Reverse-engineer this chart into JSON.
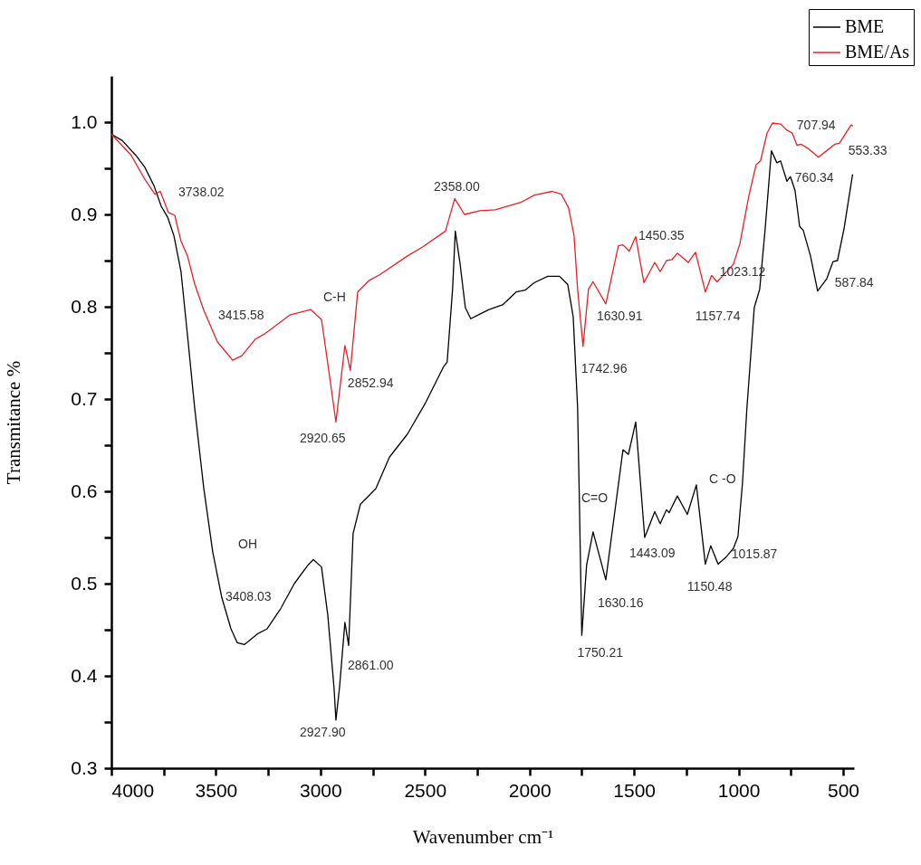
{
  "chart_data": {
    "type": "line",
    "xlabel": "Wavenumber cm⁻¹",
    "ylabel": "Transmitance %",
    "xlim": [
      4000,
      448
    ],
    "ylim": [
      0.3,
      1.05
    ],
    "xticks": [
      4000,
      {
        "value": 3750,
        "label": null
      },
      3500,
      {
        "value": 3250,
        "label": null
      },
      3000,
      {
        "value": 2750,
        "label": null
      },
      2500,
      {
        "value": 2250,
        "label": null
      },
      2000,
      {
        "value": 1750,
        "label": null
      },
      1500,
      {
        "value": 1250,
        "label": null
      },
      1000,
      {
        "value": 750,
        "label": null
      },
      500
    ],
    "yticks": [
      {
        "value": 0.3,
        "label": "0.3"
      },
      {
        "value": 0.35,
        "label": null
      },
      {
        "value": 0.4,
        "label": "0.4"
      },
      {
        "value": 0.45,
        "label": null
      },
      {
        "value": 0.5,
        "label": "0.5"
      },
      {
        "value": 0.55,
        "label": null
      },
      {
        "value": 0.6,
        "label": "0.6"
      },
      {
        "value": 0.65,
        "label": null
      },
      {
        "value": 0.7,
        "label": "0.7"
      },
      {
        "value": 0.75,
        "label": null
      },
      {
        "value": 0.8,
        "label": "0.8"
      },
      {
        "value": 0.85,
        "label": null
      },
      {
        "value": 0.9,
        "label": "0.9"
      },
      {
        "value": 0.95,
        "label": null
      },
      {
        "value": 1.0,
        "label": "1.0"
      }
    ],
    "legend": "top right",
    "series": [
      {
        "name": "BME",
        "color": "#000000",
        "x": [
          4000,
          3948,
          3883,
          3840,
          3796,
          3762,
          3731,
          3701,
          3667,
          3632,
          3602,
          3558,
          3515,
          3472,
          3428,
          3398,
          3363,
          3298,
          3255,
          3190,
          3125,
          3060,
          3034,
          2995,
          2965,
          2935,
          2926,
          2909,
          2883,
          2865,
          2844,
          2809,
          2735,
          2670,
          2584,
          2497,
          2411,
          2394,
          2368,
          2355,
          2333,
          2307,
          2281,
          2237,
          2194,
          2129,
          2064,
          2021,
          1978,
          1913,
          1856,
          1817,
          1791,
          1770,
          1761,
          1750,
          1727,
          1696,
          1635,
          1553,
          1527,
          1492,
          1449,
          1401,
          1375,
          1345,
          1332,
          1293,
          1245,
          1202,
          1159,
          1133,
          1098,
          1059,
          1025,
          1003,
          981,
          960,
          925,
          899,
          873,
          843,
          817,
          799,
          769,
          752,
          730,
          708,
          691,
          656,
          622,
          579,
          548,
          527,
          496,
          455
        ],
        "values": [
          0.987,
          0.98,
          0.964,
          0.951,
          0.931,
          0.909,
          0.897,
          0.877,
          0.838,
          0.76,
          0.691,
          0.603,
          0.534,
          0.485,
          0.451,
          0.436,
          0.434,
          0.446,
          0.451,
          0.473,
          0.5,
          0.52,
          0.526,
          0.518,
          0.466,
          0.387,
          0.352,
          0.387,
          0.458,
          0.433,
          0.554,
          0.586,
          0.603,
          0.637,
          0.662,
          0.696,
          0.735,
          0.74,
          0.819,
          0.882,
          0.848,
          0.799,
          0.787,
          0.792,
          0.797,
          0.802,
          0.816,
          0.818,
          0.826,
          0.833,
          0.833,
          0.824,
          0.789,
          0.691,
          0.583,
          0.444,
          0.52,
          0.556,
          0.504,
          0.645,
          0.64,
          0.675,
          0.55,
          0.578,
          0.565,
          0.58,
          0.577,
          0.595,
          0.575,
          0.607,
          0.521,
          0.541,
          0.521,
          0.529,
          0.538,
          0.551,
          0.61,
          0.691,
          0.799,
          0.819,
          0.884,
          0.969,
          0.956,
          0.958,
          0.936,
          0.941,
          0.926,
          0.887,
          0.883,
          0.855,
          0.817,
          0.83,
          0.849,
          0.85,
          0.884,
          0.943
        ]
      },
      {
        "name": "BME/As",
        "color": "#e8202a",
        "x": [
          4000,
          3905,
          3840,
          3792,
          3766,
          3727,
          3697,
          3667,
          3636,
          3602,
          3558,
          3493,
          3420,
          3376,
          3311,
          3264,
          3147,
          3047,
          2995,
          2974,
          2926,
          2883,
          2857,
          2822,
          2770,
          2714,
          2584,
          2510,
          2402,
          2358,
          2311,
          2237,
          2164,
          2042,
          1977,
          1891,
          1848,
          1813,
          1787,
          1770,
          1744,
          1718,
          1696,
          1635,
          1575,
          1553,
          1523,
          1492,
          1453,
          1401,
          1375,
          1345,
          1319,
          1293,
          1241,
          1206,
          1159,
          1129,
          1103,
          1025,
          994,
          951,
          916,
          895,
          864,
          838,
          799,
          773,
          743,
          721,
          700,
          665,
          618,
          579,
          540,
          518,
          462,
          455
        ],
        "values": [
          0.987,
          0.964,
          0.938,
          0.922,
          0.925,
          0.902,
          0.899,
          0.871,
          0.855,
          0.825,
          0.796,
          0.762,
          0.742,
          0.747,
          0.765,
          0.771,
          0.791,
          0.797,
          0.786,
          0.753,
          0.675,
          0.758,
          0.731,
          0.816,
          0.828,
          0.835,
          0.855,
          0.865,
          0.882,
          0.917,
          0.9,
          0.904,
          0.905,
          0.913,
          0.921,
          0.925,
          0.922,
          0.907,
          0.877,
          0.819,
          0.757,
          0.819,
          0.827,
          0.803,
          0.866,
          0.867,
          0.86,
          0.876,
          0.826,
          0.848,
          0.838,
          0.85,
          0.851,
          0.858,
          0.848,
          0.859,
          0.816,
          0.834,
          0.827,
          0.846,
          0.868,
          0.92,
          0.954,
          0.958,
          0.988,
          0.999,
          0.998,
          0.992,
          0.988,
          0.975,
          0.976,
          0.971,
          0.962,
          0.969,
          0.976,
          0.977,
          0.997,
          0.996
        ]
      }
    ],
    "annotations": [
      {
        "text": "3738.02",
        "x": 3766,
        "y": 0.925
      },
      "3415.58",
      "C-H",
      {
        "text": "2852.94",
        "x": 2857,
        "y": 0.731
      },
      {
        "text": "2920.65",
        "x": 2926,
        "y": 0.675
      },
      {
        "text": "2358.00",
        "x": 2358,
        "y": 0.917
      },
      {
        "text": "707.94",
        "x": 700,
        "y": 0.976
      },
      {
        "text": "553.33",
        "x": 540,
        "y": 0.976
      },
      {
        "text": "760.34",
        "x": 752,
        "y": 0.941
      },
      {
        "text": "587.84",
        "x": 622,
        "y": 0.817
      },
      {
        "text": "1450.35",
        "x": 1492,
        "y": 0.876
      },
      {
        "text": "1023.12",
        "x": 1025,
        "y": 0.846
      },
      {
        "text": "1630.91",
        "x": 1635,
        "y": 0.803
      },
      {
        "text": "1157.74",
        "x": 1159,
        "y": 0.816
      },
      {
        "text": "1742.96",
        "x": 1744,
        "y": 0.757
      },
      "OH",
      "3408.03",
      {
        "text": "2861.00",
        "x": 2865,
        "y": 0.433
      },
      {
        "text": "2927.90",
        "x": 2926,
        "y": 0.352
      },
      "C=O",
      "C -O",
      {
        "text": "1443.09",
        "x": 1449,
        "y": 0.55
      },
      {
        "text": "1015.87",
        "x": 1025,
        "y": 0.538
      },
      {
        "text": "1630.16",
        "x": 1635,
        "y": 0.504
      },
      {
        "text": "1150.48",
        "x": 1159,
        "y": 0.521
      },
      {
        "text": "1750.21",
        "x": 1750,
        "y": 0.444
      }
    ]
  }
}
